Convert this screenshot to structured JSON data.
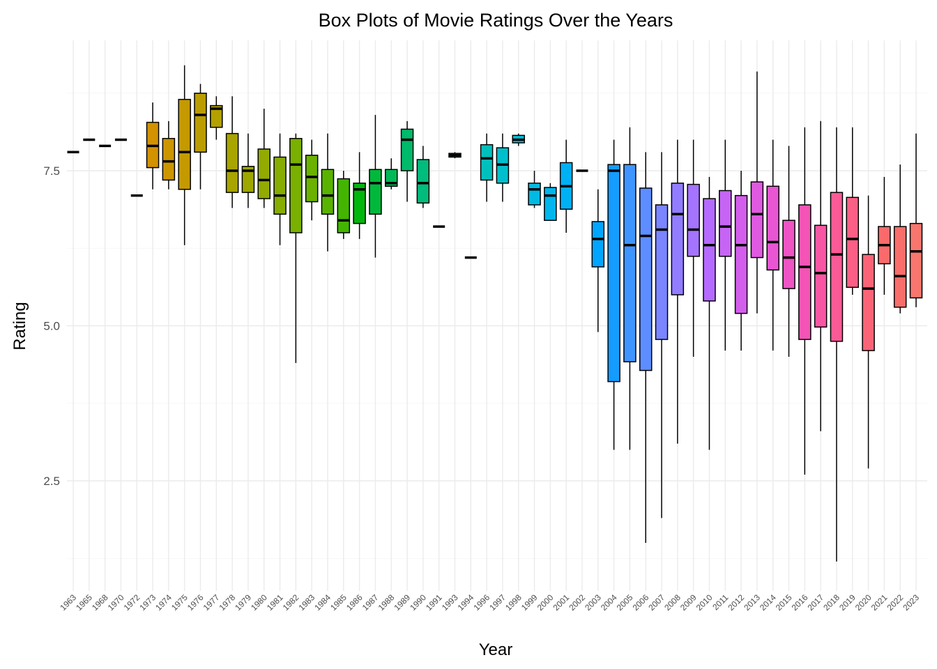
{
  "chart_data": {
    "type": "box",
    "title": "Box Plots of Movie Ratings Over the Years",
    "xlabel": "Year",
    "ylabel": "Rating",
    "ylim": [
      0.8,
      9.5
    ],
    "yticks": [
      2.5,
      5.0,
      7.5
    ],
    "ytick_labels": [
      "2.5",
      "5.0",
      "7.5"
    ],
    "grid": true,
    "legend": "none",
    "categories": [
      "1963",
      "1965",
      "1968",
      "1970",
      "1972",
      "1973",
      "1974",
      "1975",
      "1976",
      "1977",
      "1978",
      "1979",
      "1980",
      "1981",
      "1982",
      "1983",
      "1984",
      "1985",
      "1986",
      "1987",
      "1988",
      "1989",
      "1990",
      "1991",
      "1993",
      "1994",
      "1996",
      "1997",
      "1998",
      "1999",
      "2000",
      "2001",
      "2002",
      "2003",
      "2004",
      "2005",
      "2006",
      "2007",
      "2008",
      "2009",
      "2010",
      "2011",
      "2012",
      "2013",
      "2014",
      "2015",
      "2016",
      "2017",
      "2018",
      "2019",
      "2020",
      "2021",
      "2022",
      "2023"
    ],
    "boxes": [
      {
        "min": 7.8,
        "q1": 7.8,
        "median": 7.8,
        "q3": 7.8,
        "max": 7.8,
        "color": "#F8766D"
      },
      {
        "min": 8.0,
        "q1": 8.0,
        "median": 8.0,
        "q3": 8.0,
        "max": 8.0,
        "color": "#F47D45"
      },
      {
        "min": 7.9,
        "q1": 7.9,
        "median": 7.9,
        "q3": 7.9,
        "max": 7.9,
        "color": "#EC8239"
      },
      {
        "min": 8.0,
        "q1": 8.0,
        "median": 8.0,
        "q3": 8.0,
        "max": 8.0,
        "color": "#E3862E"
      },
      {
        "min": 7.1,
        "q1": 7.1,
        "median": 7.1,
        "q3": 7.1,
        "max": 7.1,
        "color": "#DA8A23"
      },
      {
        "min": 7.2,
        "q1": 7.55,
        "median": 7.9,
        "q3": 8.28,
        "max": 8.6,
        "color": "#D39200"
      },
      {
        "min": 7.2,
        "q1": 7.35,
        "median": 7.65,
        "q3": 8.02,
        "max": 8.3,
        "color": "#CC9600"
      },
      {
        "min": 6.3,
        "q1": 7.2,
        "median": 7.8,
        "q3": 8.65,
        "max": 9.2,
        "color": "#C49A00"
      },
      {
        "min": 7.2,
        "q1": 7.8,
        "median": 8.4,
        "q3": 8.75,
        "max": 8.9,
        "color": "#BB9D00"
      },
      {
        "min": 8.0,
        "q1": 8.2,
        "median": 8.5,
        "q3": 8.55,
        "max": 8.7,
        "color": "#B2A100"
      },
      {
        "min": 6.9,
        "q1": 7.15,
        "median": 7.5,
        "q3": 8.1,
        "max": 8.7,
        "color": "#A8A400"
      },
      {
        "min": 6.9,
        "q1": 7.15,
        "median": 7.5,
        "q3": 7.57,
        "max": 8.1,
        "color": "#9EA700"
      },
      {
        "min": 6.9,
        "q1": 7.05,
        "median": 7.35,
        "q3": 7.85,
        "max": 8.5,
        "color": "#93AA00"
      },
      {
        "min": 6.3,
        "q1": 6.8,
        "median": 7.1,
        "q3": 7.72,
        "max": 8.1,
        "color": "#87AD00"
      },
      {
        "min": 4.4,
        "q1": 6.5,
        "median": 7.6,
        "q3": 8.02,
        "max": 8.1,
        "color": "#7AB000"
      },
      {
        "min": 6.7,
        "q1": 7.0,
        "median": 7.4,
        "q3": 7.75,
        "max": 8.0,
        "color": "#6BB100"
      },
      {
        "min": 6.2,
        "q1": 6.8,
        "median": 7.1,
        "q3": 7.52,
        "max": 8.1,
        "color": "#5AB300"
      },
      {
        "min": 6.4,
        "q1": 6.5,
        "median": 6.7,
        "q3": 7.37,
        "max": 7.5,
        "color": "#43B500"
      },
      {
        "min": 6.4,
        "q1": 6.65,
        "median": 7.2,
        "q3": 7.3,
        "max": 7.8,
        "color": "#00B70C"
      },
      {
        "min": 6.1,
        "q1": 6.8,
        "median": 7.3,
        "q3": 7.52,
        "max": 8.4,
        "color": "#00B93B"
      },
      {
        "min": 7.2,
        "q1": 7.25,
        "median": 7.3,
        "q3": 7.52,
        "max": 7.7,
        "color": "#00BA55"
      },
      {
        "min": 7.0,
        "q1": 7.5,
        "median": 8.0,
        "q3": 8.17,
        "max": 8.3,
        "color": "#00BB6A"
      },
      {
        "min": 6.9,
        "q1": 6.98,
        "median": 7.3,
        "q3": 7.68,
        "max": 7.9,
        "color": "#00BC7D"
      },
      {
        "min": 6.6,
        "q1": 6.6,
        "median": 6.6,
        "q3": 6.6,
        "max": 6.6,
        "color": "#00BE8F"
      },
      {
        "min": 7.7,
        "q1": 7.72,
        "median": 7.75,
        "q3": 7.78,
        "max": 7.8,
        "color": "#00BF9F"
      },
      {
        "min": 6.1,
        "q1": 6.1,
        "median": 6.1,
        "q3": 6.1,
        "max": 6.1,
        "color": "#00C0AF"
      },
      {
        "min": 7.0,
        "q1": 7.35,
        "median": 7.7,
        "q3": 7.92,
        "max": 8.1,
        "color": "#00C0BE"
      },
      {
        "min": 7.0,
        "q1": 7.3,
        "median": 7.6,
        "q3": 7.87,
        "max": 8.1,
        "color": "#00BFCC"
      },
      {
        "min": 7.9,
        "q1": 7.95,
        "median": 8.0,
        "q3": 8.07,
        "max": 8.1,
        "color": "#00BDD8"
      },
      {
        "min": 6.9,
        "q1": 6.95,
        "median": 7.2,
        "q3": 7.3,
        "max": 7.5,
        "color": "#00BAE3"
      },
      {
        "min": 6.7,
        "q1": 6.7,
        "median": 7.1,
        "q3": 7.23,
        "max": 7.3,
        "color": "#00B6EC"
      },
      {
        "min": 6.5,
        "q1": 6.88,
        "median": 7.25,
        "q3": 7.63,
        "max": 8.0,
        "color": "#00B0F5"
      },
      {
        "min": 7.5,
        "q1": 7.5,
        "median": 7.5,
        "q3": 7.5,
        "max": 7.5,
        "color": "#00A9FC"
      },
      {
        "min": 4.9,
        "q1": 5.95,
        "median": 6.4,
        "q3": 6.68,
        "max": 7.2,
        "color": "#00A5FF"
      },
      {
        "min": 3.0,
        "q1": 4.1,
        "median": 7.5,
        "q3": 7.6,
        "max": 8.0,
        "color": "#149CFF"
      },
      {
        "min": 3.0,
        "q1": 4.42,
        "median": 6.3,
        "q3": 7.6,
        "max": 8.2,
        "color": "#3F95FF"
      },
      {
        "min": 1.5,
        "q1": 4.28,
        "median": 6.45,
        "q3": 7.22,
        "max": 7.8,
        "color": "#5E8DFF"
      },
      {
        "min": 1.9,
        "q1": 4.78,
        "median": 6.55,
        "q3": 6.95,
        "max": 7.8,
        "color": "#7A85FF"
      },
      {
        "min": 3.1,
        "q1": 5.5,
        "median": 6.8,
        "q3": 7.3,
        "max": 8.0,
        "color": "#927CFF"
      },
      {
        "min": 4.5,
        "q1": 6.12,
        "median": 6.55,
        "q3": 7.28,
        "max": 8.0,
        "color": "#A574FF"
      },
      {
        "min": 3.0,
        "q1": 5.4,
        "median": 6.3,
        "q3": 7.05,
        "max": 7.4,
        "color": "#B56BFF"
      },
      {
        "min": 4.6,
        "q1": 6.12,
        "median": 6.6,
        "q3": 7.18,
        "max": 8.0,
        "color": "#C764F6"
      },
      {
        "min": 4.6,
        "q1": 5.2,
        "median": 6.3,
        "q3": 7.1,
        "max": 7.5,
        "color": "#D45EEC"
      },
      {
        "min": 5.2,
        "q1": 6.1,
        "median": 6.8,
        "q3": 7.32,
        "max": 9.1,
        "color": "#DF5AE0"
      },
      {
        "min": 4.6,
        "q1": 5.9,
        "median": 6.35,
        "q3": 7.25,
        "max": 8.0,
        "color": "#E856D3"
      },
      {
        "min": 4.5,
        "q1": 5.6,
        "median": 6.1,
        "q3": 6.7,
        "max": 7.9,
        "color": "#EF54C4"
      },
      {
        "min": 2.6,
        "q1": 4.78,
        "median": 5.95,
        "q3": 6.95,
        "max": 8.2,
        "color": "#F454B5"
      },
      {
        "min": 3.3,
        "q1": 4.98,
        "median": 5.85,
        "q3": 6.62,
        "max": 8.3,
        "color": "#F856A5"
      },
      {
        "min": 1.2,
        "q1": 4.75,
        "median": 6.15,
        "q3": 7.15,
        "max": 8.2,
        "color": "#FA5A95"
      },
      {
        "min": 5.5,
        "q1": 5.62,
        "median": 6.4,
        "q3": 7.07,
        "max": 8.2,
        "color": "#FB5F85"
      },
      {
        "min": 2.7,
        "q1": 4.6,
        "median": 5.6,
        "q3": 6.15,
        "max": 7.1,
        "color": "#FB6477"
      },
      {
        "min": 5.5,
        "q1": 6.0,
        "median": 6.3,
        "q3": 6.6,
        "max": 7.4,
        "color": "#FA6A6B"
      },
      {
        "min": 5.2,
        "q1": 5.3,
        "median": 5.8,
        "q3": 6.6,
        "max": 7.6,
        "color": "#F86E6A"
      },
      {
        "min": 5.3,
        "q1": 5.45,
        "median": 6.2,
        "q3": 6.65,
        "max": 8.1,
        "color": "#F8766D"
      }
    ]
  }
}
